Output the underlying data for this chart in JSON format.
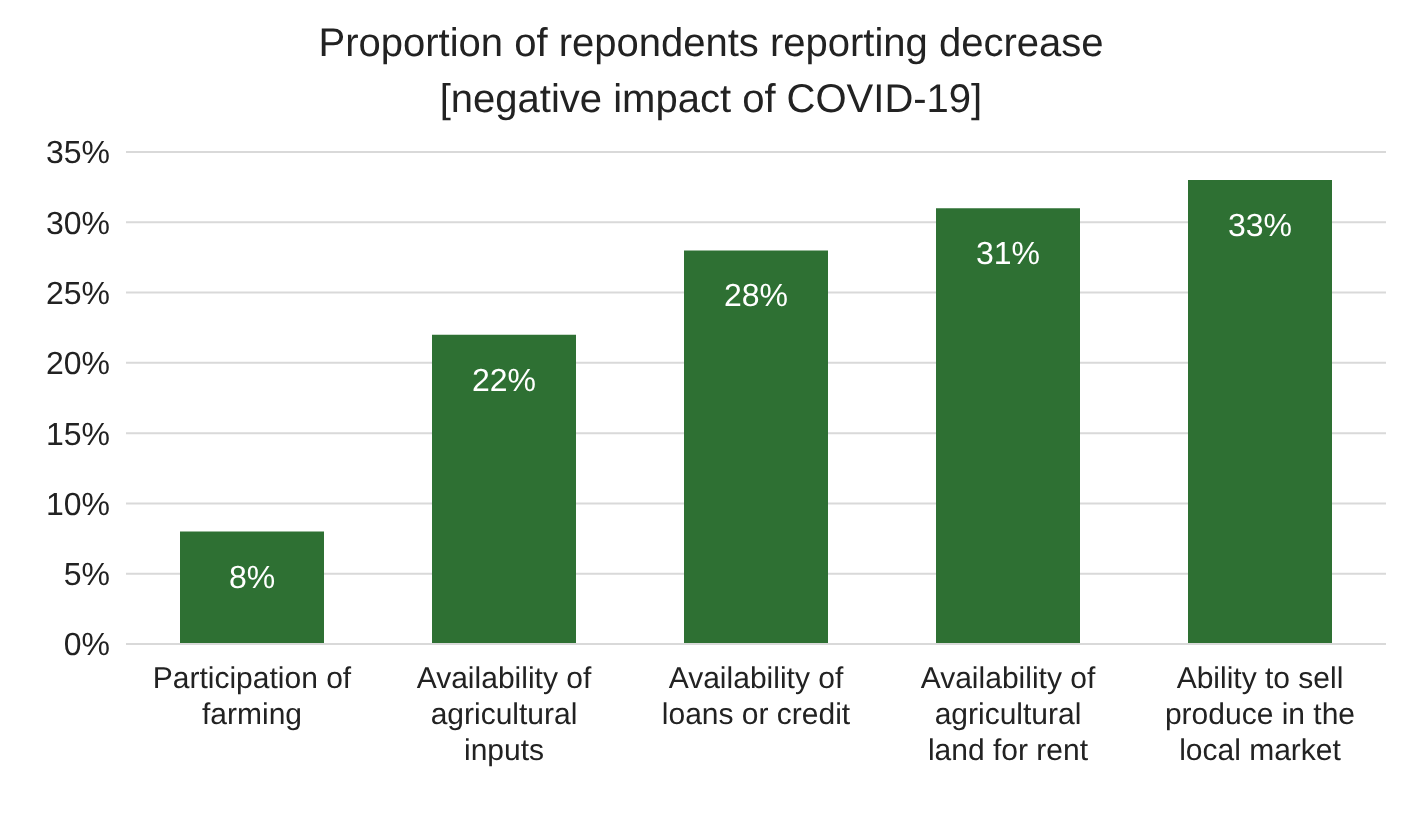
{
  "chart_data": {
    "type": "bar",
    "title": "Proportion of repondents reporting decrease [negative impact of COVID-19]",
    "categories": [
      "Participation of farming",
      "Availability of agricultural inputs",
      "Availability of loans or credit",
      "Availability of agricultural land for rent",
      "Ability to sell produce in the local market"
    ],
    "values": [
      8,
      22,
      28,
      31,
      33
    ],
    "color": "#2e7033",
    "value_labels": [
      "8%",
      "22%",
      "28%",
      "31%",
      "33%"
    ],
    "ylim": [
      0,
      35
    ],
    "yticks": [
      {
        "value": 0,
        "label": "0%"
      },
      {
        "value": 5,
        "label": "5%"
      },
      {
        "value": 10,
        "label": "10%"
      },
      {
        "value": 15,
        "label": "15%"
      },
      {
        "value": 20,
        "label": "20%"
      },
      {
        "value": 25,
        "label": "25%"
      },
      {
        "value": 30,
        "label": "30%"
      },
      {
        "value": 35,
        "label": "35%"
      }
    ],
    "grid": "y"
  }
}
